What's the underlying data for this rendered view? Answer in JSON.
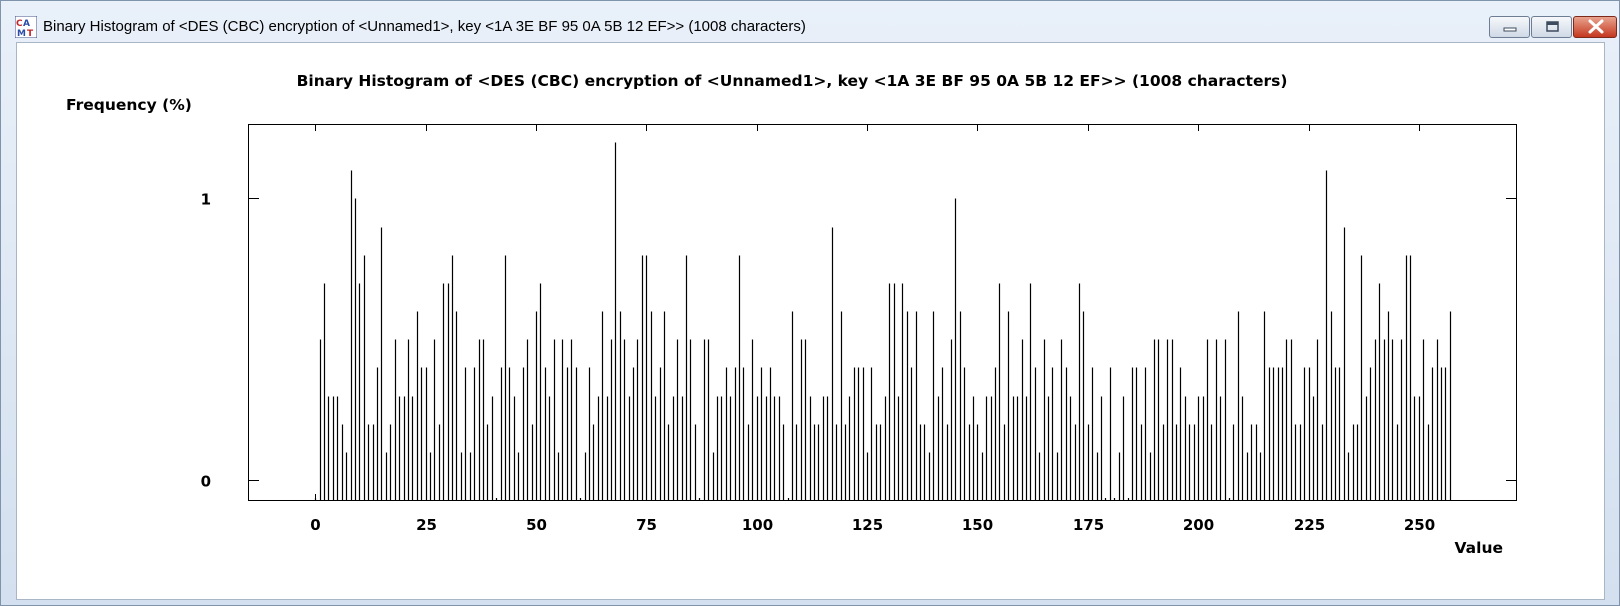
{
  "window": {
    "title": "Binary Histogram of <DES (CBC) encryption of <Unnamed1>, key <1A 3E BF 95 0A 5B 12 EF>> (1008 characters)",
    "icon": "cryptool-app-icon",
    "controls": [
      "minimize-icon",
      "maximize-icon",
      "close-icon"
    ]
  },
  "chart_data": {
    "type": "bar",
    "title": "Binary Histogram of <DES (CBC) encryption of <Unnamed1>, key <1A 3E BF 95 0A 5B 12 EF>> (1008 characters)",
    "xlabel": "Value",
    "ylabel": "Frequency (%)",
    "xlim": [
      -15,
      272
    ],
    "ylim": [
      -0.07,
      1.26
    ],
    "x_ticks": [
      0,
      25,
      50,
      75,
      100,
      125,
      150,
      175,
      200,
      225,
      250
    ],
    "y_ticks": [
      0,
      1
    ],
    "grid": false,
    "legend": "none",
    "categories_start": 0,
    "values": [
      0,
      0.5,
      0.7,
      0.3,
      0.3,
      0.3,
      0.2,
      0.1,
      1.1,
      1.0,
      0.7,
      0.8,
      0.2,
      0.2,
      0.4,
      0.9,
      0.1,
      0.2,
      0.5,
      0.3,
      0.3,
      0.5,
      0.3,
      0.6,
      0.4,
      0.4,
      0.1,
      0.5,
      0.2,
      0.7,
      0.7,
      0.8,
      0.6,
      0.1,
      0.4,
      0.1,
      0.4,
      0.5,
      0.5,
      0.2,
      0.3,
      0.0,
      0.4,
      0.8,
      0.4,
      0.3,
      0.1,
      0.4,
      0.5,
      0.2,
      0.6,
      0.7,
      0.4,
      0.3,
      0.5,
      0.1,
      0.5,
      0.4,
      0.5,
      0.4,
      0.0,
      0.1,
      0.4,
      0.2,
      0.3,
      0.6,
      0.3,
      0.5,
      1.2,
      0.6,
      0.5,
      0.3,
      0.4,
      0.5,
      0.8,
      0.8,
      0.6,
      0.3,
      0.4,
      0.6,
      0.2,
      0.3,
      0.5,
      0.3,
      0.8,
      0.5,
      0.2,
      0.0,
      0.5,
      0.5,
      0.1,
      0.3,
      0.3,
      0.4,
      0.3,
      0.4,
      0.8,
      0.4,
      0.2,
      0.5,
      0.3,
      0.4,
      0.3,
      0.4,
      0.3,
      0.3,
      0.2,
      0.0,
      0.6,
      0.2,
      0.5,
      0.5,
      0.3,
      0.2,
      0.2,
      0.3,
      0.3,
      0.9,
      0.2,
      0.6,
      0.2,
      0.3,
      0.4,
      0.4,
      0.4,
      0.1,
      0.4,
      0.2,
      0.2,
      0.3,
      0.7,
      0.7,
      0.3,
      0.7,
      0.6,
      0.4,
      0.6,
      0.2,
      0.2,
      0.1,
      0.6,
      0.3,
      0.4,
      0.2,
      0.5,
      1.0,
      0.6,
      0.4,
      0.2,
      0.3,
      0.2,
      0.1,
      0.3,
      0.3,
      0.4,
      0.7,
      0.2,
      0.6,
      0.3,
      0.3,
      0.5,
      0.3,
      0.7,
      0.4,
      0.1,
      0.5,
      0.3,
      0.4,
      0.1,
      0.5,
      0.4,
      0.3,
      0.2,
      0.7,
      0.6,
      0.2,
      0.4,
      0.1,
      0.3,
      0.0,
      0.4,
      0.0,
      0.1,
      0.3,
      0.0,
      0.4,
      0.4,
      0.2,
      0.4,
      0.1,
      0.5,
      0.5,
      0.2,
      0.5,
      0.5,
      0.2,
      0.4,
      0.3,
      0.2,
      0.2,
      0.3,
      0.3,
      0.5,
      0.2,
      0.5,
      0.3,
      0.5,
      0.0,
      0.2,
      0.6,
      0.3,
      0.1,
      0.2,
      0.2,
      0.1,
      0.6,
      0.4,
      0.4,
      0.4,
      0.4,
      0.5,
      0.5,
      0.2,
      0.2,
      0.4,
      0.4,
      0.3,
      0.5,
      0.2,
      1.1,
      0.6,
      0.4,
      0.4,
      0.9,
      0.1,
      0.2,
      0.2,
      0.8,
      0.3,
      0.4,
      0.5,
      0.7,
      0.5,
      0.6,
      0.5,
      0.2,
      0.5,
      0.8,
      0.8,
      0.3,
      0.3,
      0.5,
      0.2,
      0.4,
      0.5,
      0.4,
      0.4,
      0.6
    ]
  }
}
